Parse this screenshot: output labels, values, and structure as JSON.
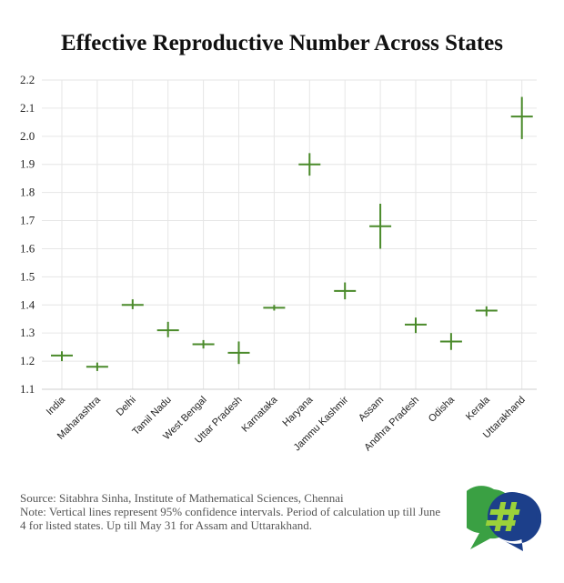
{
  "title": "Effective Reproductive Number Across States",
  "footer": {
    "source": "Source: Sitabhra Sinha, Institute of Mathematical Sciences, Chennai",
    "note": "Note: Vertical lines represent 95% confidence intervals. Period of calculation up till June 4 for listed states. Up till May 31 for Assam and Uttarakhand."
  },
  "colors": {
    "marker": "#4a8a2a",
    "grid": "#e6e6e6",
    "logo_green": "#3aa043",
    "logo_blue": "#1c3f8a",
    "logo_lime": "#9bd13a"
  },
  "chart_data": {
    "type": "scatter",
    "title": "Effective Reproductive Number Across States",
    "xlabel": "",
    "ylabel": "",
    "ylim": [
      1.1,
      2.2
    ],
    "yticks": [
      1.1,
      1.2,
      1.3,
      1.4,
      1.5,
      1.6,
      1.7,
      1.8,
      1.9,
      2.0,
      2.1,
      2.2
    ],
    "ytick_labels": [
      "1.1",
      "1.2",
      "1.3",
      "1.4",
      "1.5",
      "1.6",
      "1.7",
      "1.8",
      "1.9",
      "2.0",
      "2.1",
      "2.2"
    ],
    "grid": true,
    "categories": [
      "India",
      "Maharashtra",
      "Delhi",
      "Tamil Nadu",
      "West Bengal",
      "Uttar Pradesh",
      "Karnataka",
      "Haryana",
      "Jammu Kashmir",
      "Assam",
      "Andhra Pradesh",
      "Odisha",
      "Kerala",
      "Uttarakhand"
    ],
    "values": [
      1.22,
      1.18,
      1.4,
      1.31,
      1.26,
      1.23,
      1.39,
      1.9,
      1.45,
      1.68,
      1.33,
      1.27,
      1.38,
      2.07
    ],
    "ci_low": [
      1.2,
      1.165,
      1.385,
      1.285,
      1.245,
      1.19,
      1.38,
      1.86,
      1.42,
      1.6,
      1.3,
      1.24,
      1.36,
      1.99
    ],
    "ci_high": [
      1.235,
      1.195,
      1.42,
      1.34,
      1.275,
      1.27,
      1.4,
      1.94,
      1.48,
      1.76,
      1.355,
      1.3,
      1.395,
      2.14
    ]
  }
}
